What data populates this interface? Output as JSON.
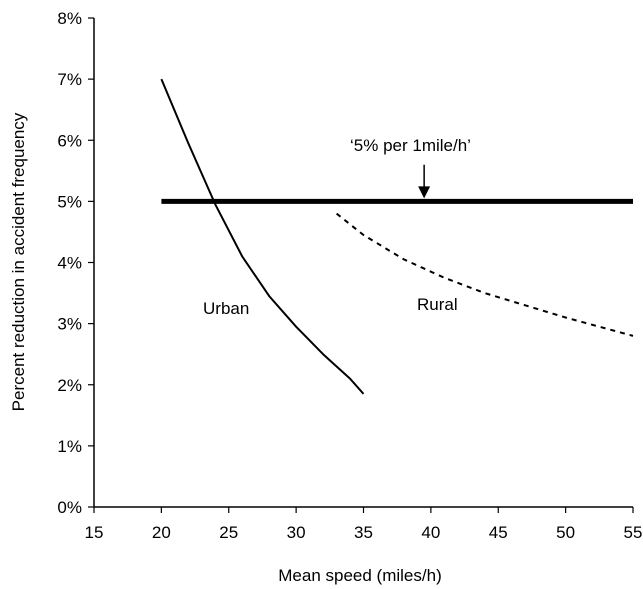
{
  "chart_data": {
    "type": "line",
    "xlabel": "Mean speed (miles/h)",
    "ylabel": "Percent reduction in accident frequency",
    "xlim": [
      15,
      55
    ],
    "ylim": [
      0,
      8
    ],
    "x_ticks": [
      "15",
      "20",
      "25",
      "30",
      "35",
      "40",
      "45",
      "50",
      "55"
    ],
    "y_ticks": [
      "0%",
      "1%",
      "2%",
      "3%",
      "4%",
      "5%",
      "6%",
      "7%",
      "8%"
    ],
    "grid": false,
    "legend": "none",
    "series": [
      {
        "name": "Urban",
        "style": "solid",
        "x": [
          20,
          22,
          24,
          26,
          28,
          30,
          32,
          34,
          35
        ],
        "y": [
          7.0,
          5.95,
          4.95,
          4.1,
          3.45,
          2.95,
          2.5,
          2.1,
          1.85
        ]
      },
      {
        "name": "Rural",
        "style": "dotted",
        "x": [
          33,
          35,
          38,
          41,
          44,
          47,
          50,
          53,
          55
        ],
        "y": [
          4.8,
          4.45,
          4.05,
          3.75,
          3.5,
          3.3,
          3.1,
          2.92,
          2.8
        ]
      },
      {
        "name": "",
        "style": "thick",
        "x": [
          20,
          55
        ],
        "y": [
          5.0,
          5.0
        ]
      }
    ],
    "annotations": {
      "urban": "Urban",
      "rural": "Rural",
      "rule": "‘5% per 1mile/h’"
    },
    "arrow": {
      "x": 39.5,
      "y_from": 5.6,
      "y_to": 5.05
    },
    "colors": {
      "line": "#000000"
    }
  }
}
